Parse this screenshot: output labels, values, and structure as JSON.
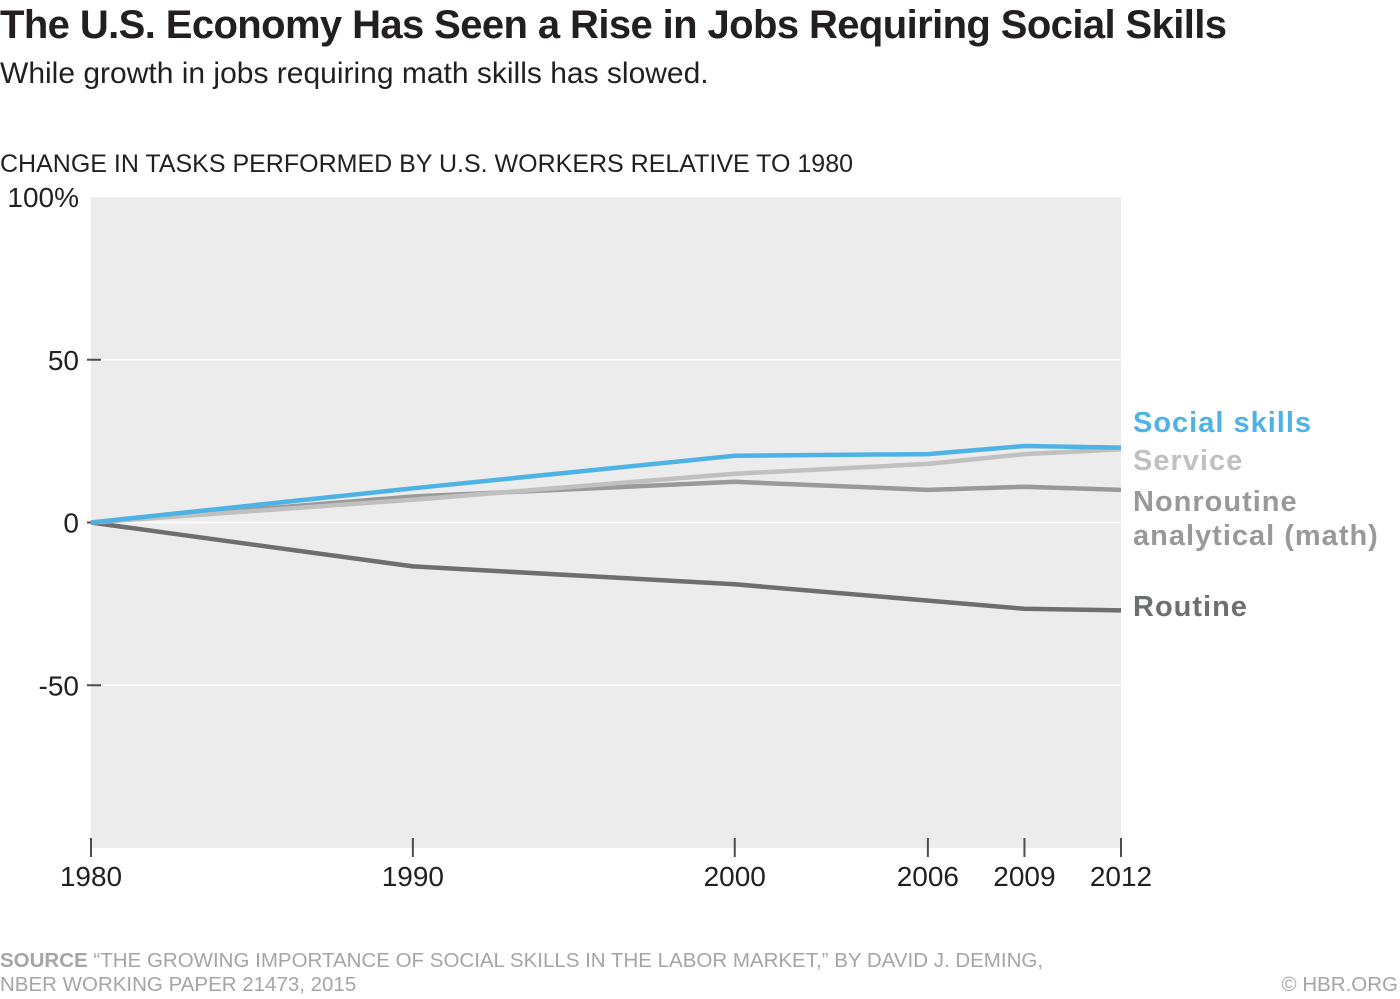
{
  "header": {
    "title": "The U.S. Economy Has Seen a Rise in Jobs Requiring Social Skills",
    "subtitle": "While growth in jobs requiring math skills has slowed."
  },
  "chart_data": {
    "type": "line",
    "title": "CHANGE IN TASKS PERFORMED BY U.S. WORKERS RELATIVE TO 1980",
    "x": [
      1980,
      1990,
      2000,
      2006,
      2009,
      2012
    ],
    "x_tick_labels": [
      "1980",
      "1990",
      "2000",
      "2006",
      "2009",
      "2012"
    ],
    "xlim": [
      1980,
      2012
    ],
    "y_ticks": [
      100,
      50,
      0,
      -50
    ],
    "y_tick_labels": [
      "100%",
      "50",
      "0",
      "-50"
    ],
    "ylim": [
      -100,
      100
    ],
    "grid": true,
    "legend": "right",
    "colors": {
      "plot_background": "#ececec",
      "gridline": "#ffffff",
      "tick": "#4d4d4d"
    },
    "series": [
      {
        "name": "Social skills",
        "color": "#4eb3e4",
        "values": [
          0,
          10.5,
          20.5,
          21,
          23.5,
          23
        ]
      },
      {
        "name": "Service",
        "color": "#c0c0c0",
        "values": [
          0,
          7,
          15,
          18,
          21,
          22.5
        ]
      },
      {
        "name": "Nonroutine analytical (math)",
        "color": "#999999",
        "values": [
          0,
          8,
          12.5,
          10,
          11,
          10
        ]
      },
      {
        "name": "Routine",
        "color": "#6d6e70",
        "values": [
          0,
          -13.5,
          -19,
          -24,
          -26.5,
          -27
        ]
      }
    ]
  },
  "footer": {
    "source_label": "SOURCE",
    "source_lines": [
      "“THE GROWING IMPORTANCE OF SOCIAL SKILLS IN THE LABOR MARKET,” BY DAVID J. DEMING,",
      "NBER WORKING PAPER 21473, 2015"
    ],
    "credit": "© HBR.ORG"
  }
}
